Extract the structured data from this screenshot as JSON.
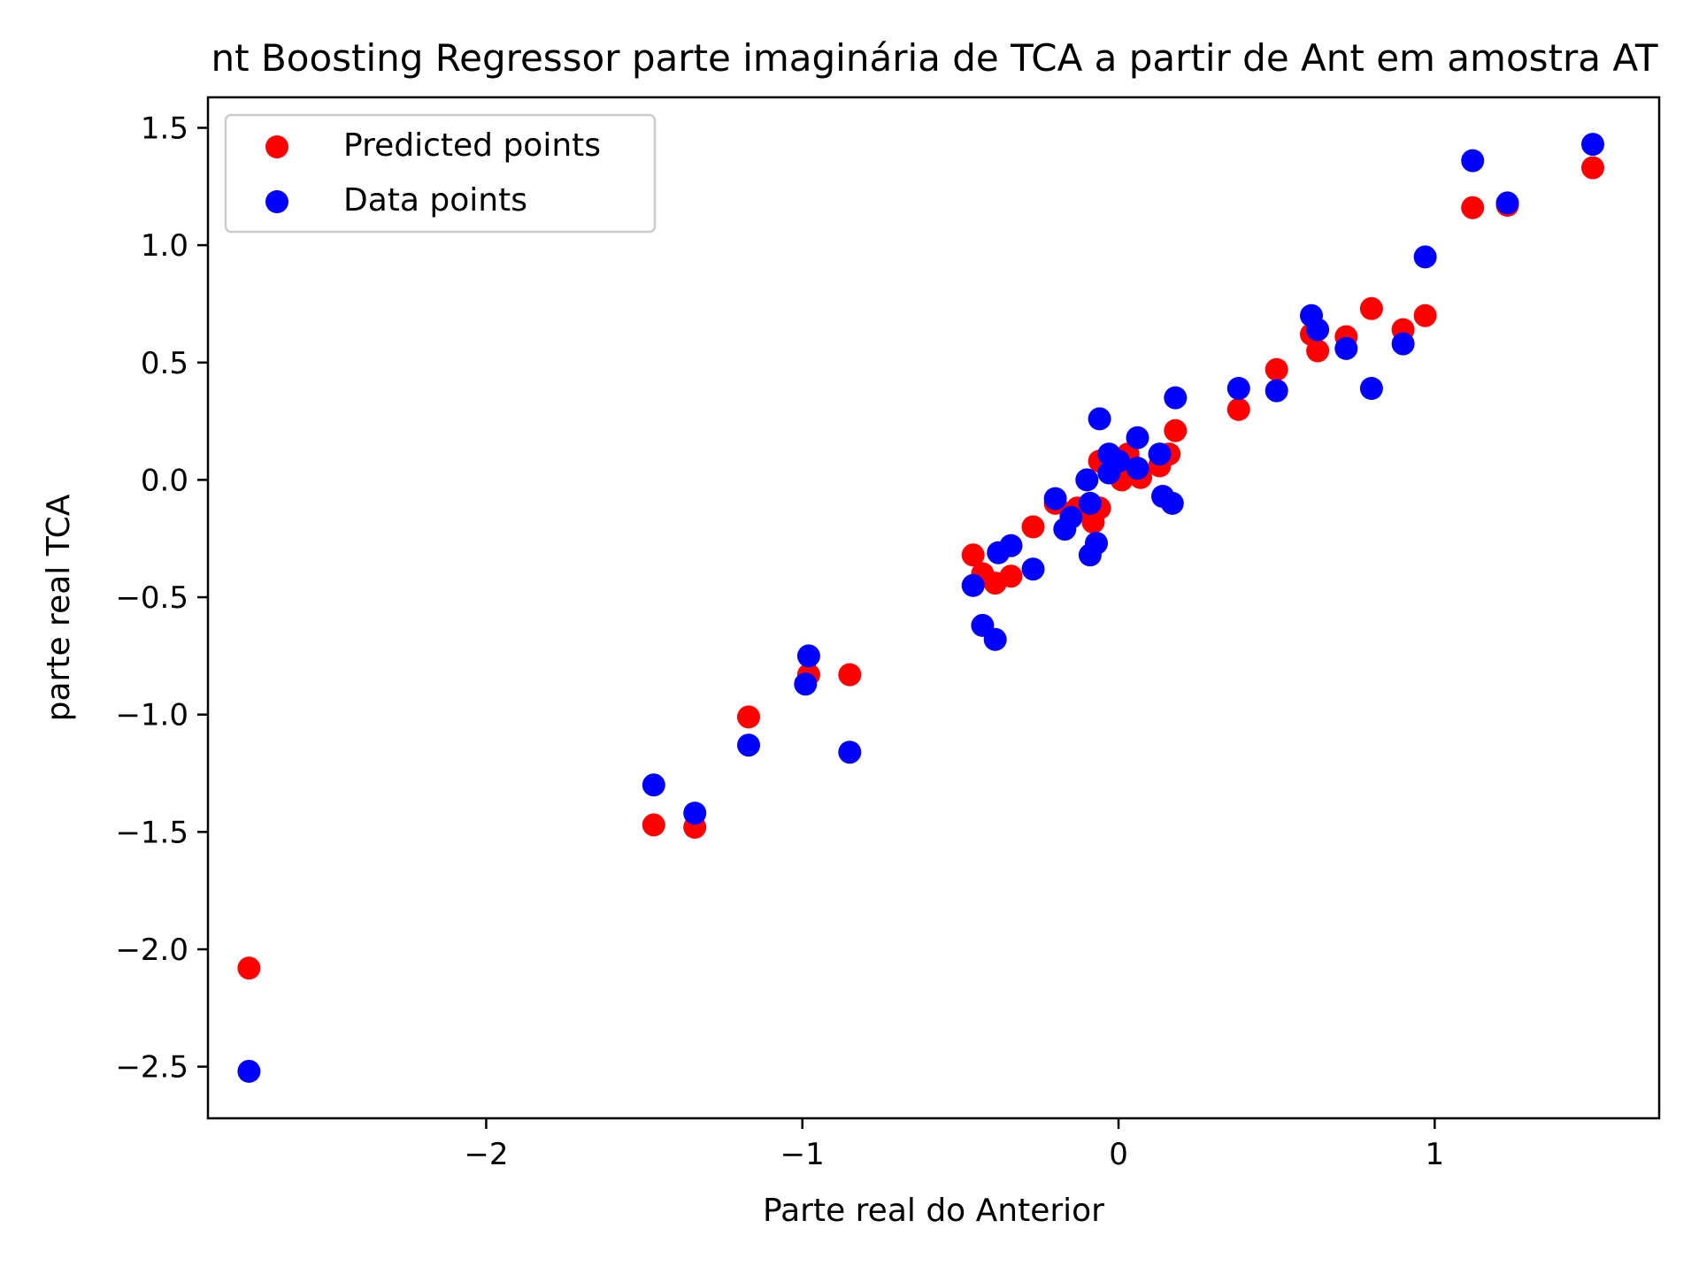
{
  "chart_data": {
    "type": "scatter",
    "title": "nt Boosting Regressor parte imaginária de TCA a partir de Ant em amostra  AT",
    "xlabel": "Parte real do Anterior",
    "ylabel": "parte real TCA",
    "xlim": [
      -2.88,
      1.71
    ],
    "ylim": [
      -2.72,
      1.63
    ],
    "x_ticks": [
      {
        "value": -2,
        "label": "−2"
      },
      {
        "value": -1,
        "label": "−1"
      },
      {
        "value": 0,
        "label": "0"
      },
      {
        "value": 1,
        "label": "1"
      }
    ],
    "y_ticks": [
      {
        "value": 1.5,
        "label": "1.5"
      },
      {
        "value": 1.0,
        "label": "1.0"
      },
      {
        "value": 0.5,
        "label": "0.5"
      },
      {
        "value": 0.0,
        "label": "0.0"
      },
      {
        "value": -0.5,
        "label": "−0.5"
      },
      {
        "value": -1.0,
        "label": "−1.0"
      },
      {
        "value": -1.5,
        "label": "−1.5"
      },
      {
        "value": -2.0,
        "label": "−2.0"
      },
      {
        "value": -2.5,
        "label": "−2.5"
      }
    ],
    "grid": false,
    "legend_position": "top-left",
    "series": [
      {
        "name": "Predicted points",
        "color": "#ff0000",
        "points": [
          {
            "x": -2.75,
            "y": -2.08
          },
          {
            "x": -1.47,
            "y": -1.47
          },
          {
            "x": -1.34,
            "y": -1.48
          },
          {
            "x": -1.17,
            "y": -1.01
          },
          {
            "x": -0.98,
            "y": -0.83
          },
          {
            "x": -0.85,
            "y": -0.83
          },
          {
            "x": -0.46,
            "y": -0.32
          },
          {
            "x": -0.43,
            "y": -0.4
          },
          {
            "x": -0.39,
            "y": -0.44
          },
          {
            "x": -0.34,
            "y": -0.41
          },
          {
            "x": -0.27,
            "y": -0.2
          },
          {
            "x": -0.2,
            "y": -0.1
          },
          {
            "x": -0.15,
            "y": -0.14
          },
          {
            "x": -0.13,
            "y": -0.12
          },
          {
            "x": -0.08,
            "y": -0.18
          },
          {
            "x": -0.06,
            "y": -0.12
          },
          {
            "x": -0.06,
            "y": 0.08
          },
          {
            "x": -0.03,
            "y": 0.1
          },
          {
            "x": 0.01,
            "y": 0.0
          },
          {
            "x": 0.03,
            "y": 0.11
          },
          {
            "x": 0.07,
            "y": 0.01
          },
          {
            "x": 0.13,
            "y": 0.06
          },
          {
            "x": 0.16,
            "y": 0.11
          },
          {
            "x": 0.18,
            "y": 0.21
          },
          {
            "x": 0.38,
            "y": 0.3
          },
          {
            "x": 0.5,
            "y": 0.47
          },
          {
            "x": 0.61,
            "y": 0.62
          },
          {
            "x": 0.63,
            "y": 0.55
          },
          {
            "x": 0.72,
            "y": 0.61
          },
          {
            "x": 0.8,
            "y": 0.73
          },
          {
            "x": 0.9,
            "y": 0.64
          },
          {
            "x": 0.97,
            "y": 0.7
          },
          {
            "x": 1.12,
            "y": 1.16
          },
          {
            "x": 1.23,
            "y": 1.17
          },
          {
            "x": 1.5,
            "y": 1.33
          }
        ]
      },
      {
        "name": "Data points",
        "color": "#0000ff",
        "points": [
          {
            "x": -2.75,
            "y": -2.52
          },
          {
            "x": -1.47,
            "y": -1.3
          },
          {
            "x": -1.34,
            "y": -1.42
          },
          {
            "x": -1.17,
            "y": -1.13
          },
          {
            "x": -0.98,
            "y": -0.75
          },
          {
            "x": -0.99,
            "y": -0.87
          },
          {
            "x": -0.85,
            "y": -1.16
          },
          {
            "x": -0.46,
            "y": -0.45
          },
          {
            "x": -0.43,
            "y": -0.62
          },
          {
            "x": -0.39,
            "y": -0.68
          },
          {
            "x": -0.38,
            "y": -0.31
          },
          {
            "x": -0.34,
            "y": -0.28
          },
          {
            "x": -0.27,
            "y": -0.38
          },
          {
            "x": -0.2,
            "y": -0.08
          },
          {
            "x": -0.17,
            "y": -0.21
          },
          {
            "x": -0.15,
            "y": -0.16
          },
          {
            "x": -0.1,
            "y": 0.0
          },
          {
            "x": -0.09,
            "y": -0.32
          },
          {
            "x": -0.07,
            "y": -0.27
          },
          {
            "x": -0.09,
            "y": -0.1
          },
          {
            "x": -0.06,
            "y": 0.26
          },
          {
            "x": -0.03,
            "y": 0.03
          },
          {
            "x": -0.03,
            "y": 0.11
          },
          {
            "x": 0.0,
            "y": 0.08
          },
          {
            "x": 0.06,
            "y": 0.18
          },
          {
            "x": 0.06,
            "y": 0.05
          },
          {
            "x": 0.13,
            "y": 0.11
          },
          {
            "x": 0.14,
            "y": -0.07
          },
          {
            "x": 0.17,
            "y": -0.1
          },
          {
            "x": 0.18,
            "y": 0.35
          },
          {
            "x": 0.38,
            "y": 0.39
          },
          {
            "x": 0.5,
            "y": 0.38
          },
          {
            "x": 0.61,
            "y": 0.7
          },
          {
            "x": 0.63,
            "y": 0.64
          },
          {
            "x": 0.72,
            "y": 0.56
          },
          {
            "x": 0.8,
            "y": 0.39
          },
          {
            "x": 0.9,
            "y": 0.58
          },
          {
            "x": 0.97,
            "y": 0.95
          },
          {
            "x": 1.12,
            "y": 1.36
          },
          {
            "x": 1.23,
            "y": 1.18
          },
          {
            "x": 1.5,
            "y": 1.43
          }
        ]
      }
    ]
  }
}
